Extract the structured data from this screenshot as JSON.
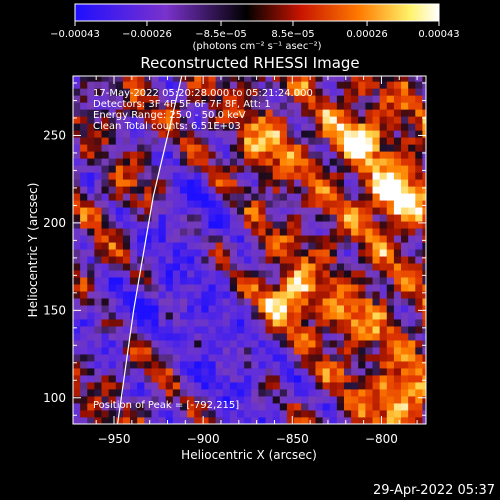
{
  "chart_data": {
    "type": "heatmap",
    "title": "Reconstructed RHESSI Image",
    "xlabel": "Heliocentric X (arcsec)",
    "ylabel": "Heliocentric Y (arcsec)",
    "xlim": [
      -973,
      -775
    ],
    "ylim": [
      85,
      284
    ],
    "x_ticks": [
      -950,
      -900,
      -850,
      -800
    ],
    "y_ticks": [
      100,
      150,
      200,
      250
    ],
    "x_tick_labels": [
      "−950",
      "−900",
      "−850",
      "−800"
    ],
    "y_tick_labels": [
      "100",
      "150",
      "200",
      "250"
    ],
    "colorbar": {
      "range": [
        -0.00043,
        0.00043
      ],
      "ticks": [
        -0.00043,
        -0.00026,
        -8.5e-05,
        8.5e-05,
        0.00026,
        0.00043
      ],
      "tick_labels": [
        "−0.00043",
        "−0.00026",
        "−8.5e−05",
        "8.5e−05",
        "0.00026",
        "0.00043"
      ],
      "label": "(photons cm⁻² s⁻¹ asec⁻²)",
      "colors": [
        "#1f0fff",
        "#7a32cc",
        "#000000",
        "#c81400",
        "#ff7a00",
        "#fff26a",
        "#ffffff"
      ]
    },
    "annotations": [
      "17-May-2022 05:20:28.000 to 05:21:24.000",
      "Detectors: 3F 4F 5F 6F 7F 8F, Att: 1",
      "Energy Range: 25.0 - 50.0 keV",
      "Clean     Total counts: 6.51E+03",
      "Position of Peak = [-792,215]"
    ],
    "peak": [
      -792,
      215
    ],
    "solar_limb": [
      [
        -948,
        85
      ],
      [
        -939,
        150
      ],
      [
        -928,
        215
      ],
      [
        -912,
        284
      ]
    ],
    "hot_spots": [
      {
        "x": -852,
        "y": 158,
        "value": 0.00043
      },
      {
        "x": -792,
        "y": 215,
        "value": 0.00043
      },
      {
        "x": -813,
        "y": 248,
        "value": 0.00034
      },
      {
        "x": -790,
        "y": 100,
        "value": 0.0003
      },
      {
        "x": -866,
        "y": 244,
        "value": 0.00026
      },
      {
        "x": -938,
        "y": 218,
        "value": 0.0002
      },
      {
        "x": -924,
        "y": 128,
        "value": 0.00022
      },
      {
        "x": -816,
        "y": 144,
        "value": 0.0002
      },
      {
        "x": -957,
        "y": 180,
        "value": 0.00014
      }
    ],
    "cold_regions": [
      {
        "x": -912,
        "y": 205,
        "value": -0.00026
      },
      {
        "x": -900,
        "y": 140,
        "value": -0.00024
      },
      {
        "x": -872,
        "y": 100,
        "value": -0.00022
      },
      {
        "x": -940,
        "y": 150,
        "value": -0.0002
      }
    ],
    "grid": false
  },
  "footer": {
    "timestamp": "29-Apr-2022 05:37"
  }
}
